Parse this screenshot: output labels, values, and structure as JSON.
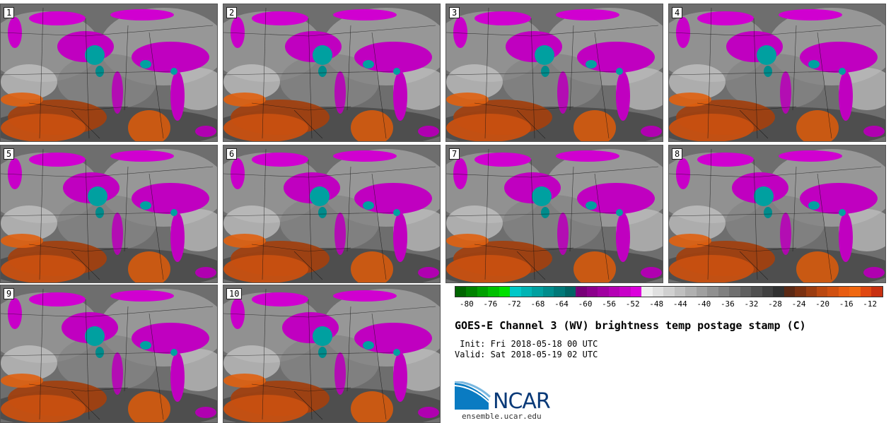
{
  "panels": [
    {
      "label": "1"
    },
    {
      "label": "2"
    },
    {
      "label": "3"
    },
    {
      "label": "4"
    },
    {
      "label": "5"
    },
    {
      "label": "6"
    },
    {
      "label": "7"
    },
    {
      "label": "8"
    },
    {
      "label": "9"
    },
    {
      "label": "10"
    }
  ],
  "colorbar": {
    "colors": [
      "#006400",
      "#008200",
      "#00a000",
      "#00c000",
      "#00e000",
      "#00c8c8",
      "#00b4b4",
      "#00a0a0",
      "#008c8c",
      "#007878",
      "#006464",
      "#780078",
      "#8c008c",
      "#a000a0",
      "#b400b4",
      "#c800c8",
      "#dc00dc",
      "#f0f0f0",
      "#e0e0e0",
      "#d0d0d0",
      "#c0c0c0",
      "#b0b0b0",
      "#a0a0a0",
      "#909090",
      "#808080",
      "#707070",
      "#606060",
      "#505050",
      "#404040",
      "#303030",
      "#5a2814",
      "#7a3010",
      "#9a3c10",
      "#ba4810",
      "#d05010",
      "#e85c10",
      "#f06810",
      "#e04810",
      "#c83010"
    ],
    "tick_labels": [
      "-80",
      "-76",
      "-72",
      "-68",
      "-64",
      "-60",
      "-56",
      "-52",
      "-48",
      "-44",
      "-40",
      "-36",
      "-32",
      "-28",
      "-24",
      "-20",
      "-16",
      "-12"
    ]
  },
  "title": "GOES-E Channel 3 (WV) brightness temp postage stamp (C)",
  "init_line": " Init: Fri 2018-05-18 00 UTC",
  "valid_line": "Valid: Sat 2018-05-19 02 UTC",
  "logo_text": "NCAR",
  "site": "ensemble.ucar.edu"
}
